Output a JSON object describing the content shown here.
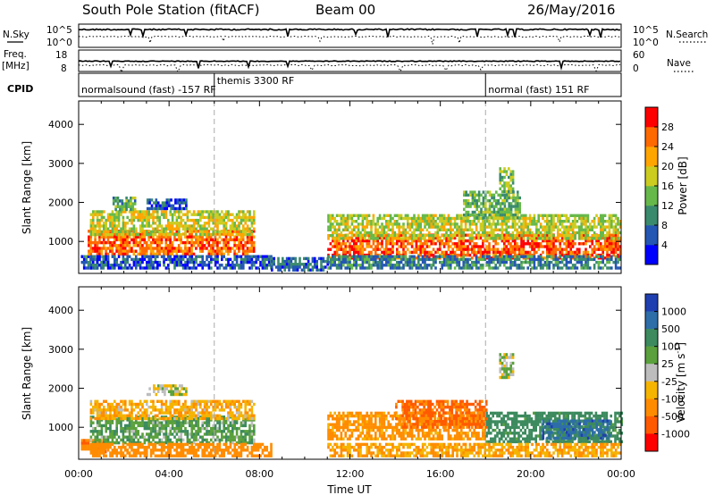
{
  "header": {
    "station": "South Pole Station (fitACF)",
    "beam": "Beam 00",
    "date": "26/May/2016"
  },
  "strip_panels": {
    "nsky": {
      "left_label": "N.Sky",
      "right_label": "N.Search",
      "left_ticks": [
        "10^5",
        "10^0"
      ],
      "right_ticks": [
        "10^5",
        "10^0"
      ]
    },
    "freq": {
      "left_label_1": "Freq.",
      "left_label_2": "[MHz]",
      "right_label": "Nave",
      "left_ticks": [
        "18",
        "8"
      ],
      "right_ticks": [
        "60",
        "0"
      ]
    },
    "cpid": {
      "label": "CPID",
      "segments": [
        {
          "label": "normalsound (fast) -157 RF",
          "start_hour": 0,
          "end_hour": 6
        },
        {
          "label": "themis 3300 RF",
          "start_hour": 6,
          "end_hour": 18
        },
        {
          "label": "normal (fast) 151 RF",
          "start_hour": 18,
          "end_hour": 24
        }
      ]
    }
  },
  "colorbars": {
    "power": {
      "label": "Power [dB]",
      "ticks": [
        "28",
        "24",
        "20",
        "16",
        "12",
        "8",
        "4"
      ],
      "colors": [
        "#0000ff",
        "#2456b4",
        "#3a8a6e",
        "#66b84a",
        "#cccc20",
        "#ffa500",
        "#ff6a00",
        "#ff0000"
      ]
    },
    "velocity": {
      "label_main": "Velocity [m s",
      "label_exp": "-1",
      "label_close": "]",
      "ticks": [
        "1000",
        "500",
        "100",
        "25",
        "-25",
        "-100",
        "-500",
        "-1000"
      ],
      "colors": [
        "#1f3fb0",
        "#2d6ea8",
        "#3c8a5e",
        "#5aa03c",
        "#bdbdbd",
        "#f5b400",
        "#ff8c00",
        "#ff5a00",
        "#ff0000"
      ]
    }
  },
  "chart_data": [
    {
      "type": "heatmap",
      "name": "power",
      "xlabel": "Time UT",
      "ylabel": "Slant Range [km]",
      "x_ticks": [
        "00:00",
        "04:00",
        "08:00",
        "12:00",
        "16:00",
        "20:00",
        "00:00"
      ],
      "xlim_hours": [
        0,
        24
      ],
      "ylim": [
        180,
        4600
      ],
      "y_ticks": [
        1000,
        2000,
        3000,
        4000
      ],
      "cpid_change_hours": [
        6,
        18
      ],
      "regions": [
        {
          "start_hour": 0.1,
          "end_hour": 1.2,
          "range_min": 350,
          "range_max": 650,
          "level": 8
        },
        {
          "start_hour": 0.4,
          "end_hour": 7.8,
          "range_min": 700,
          "range_max": 1300,
          "level": 26
        },
        {
          "start_hour": 0.5,
          "end_hour": 7.8,
          "range_min": 1200,
          "range_max": 1800,
          "level": 18
        },
        {
          "start_hour": 1.5,
          "end_hour": 2.5,
          "range_min": 1850,
          "range_max": 2150,
          "level": 12
        },
        {
          "start_hour": 3.0,
          "end_hour": 4.8,
          "range_min": 1850,
          "range_max": 2100,
          "level": 6
        },
        {
          "start_hour": 0.5,
          "end_hour": 8.5,
          "range_min": 300,
          "range_max": 650,
          "level": 6
        },
        {
          "start_hour": 8.5,
          "end_hour": 11.0,
          "range_min": 300,
          "range_max": 600,
          "level": 7
        },
        {
          "start_hour": 11.0,
          "end_hour": 24.0,
          "range_min": 600,
          "range_max": 1200,
          "level": 27
        },
        {
          "start_hour": 11.0,
          "end_hour": 24.0,
          "range_min": 1100,
          "range_max": 1700,
          "level": 17
        },
        {
          "start_hour": 11.0,
          "end_hour": 24.0,
          "range_min": 300,
          "range_max": 650,
          "level": 9
        },
        {
          "start_hour": 17.0,
          "end_hour": 19.5,
          "range_min": 1600,
          "range_max": 2300,
          "level": 13
        },
        {
          "start_hour": 18.6,
          "end_hour": 19.2,
          "range_min": 2300,
          "range_max": 2900,
          "level": 15
        }
      ]
    },
    {
      "type": "heatmap",
      "name": "velocity",
      "xlabel": "Time UT",
      "ylabel": "Slant Range [km]",
      "x_ticks": [
        "00:00",
        "04:00",
        "08:00",
        "12:00",
        "16:00",
        "20:00",
        "00:00"
      ],
      "xlim_hours": [
        0,
        24
      ],
      "ylim": [
        180,
        4600
      ],
      "y_ticks": [
        1000,
        2000,
        3000,
        4000
      ],
      "cpid_change_hours": [
        6,
        18
      ],
      "regions": [
        {
          "start_hour": 0.1,
          "end_hour": 1.2,
          "range_min": 350,
          "range_max": 700,
          "level": -400
        },
        {
          "start_hour": 0.5,
          "end_hour": 7.8,
          "range_min": 600,
          "range_max": 1300,
          "level": 80
        },
        {
          "start_hour": 0.5,
          "end_hour": 7.8,
          "range_min": 1200,
          "range_max": 1700,
          "level": -80
        },
        {
          "start_hour": 3.0,
          "end_hour": 4.8,
          "range_min": 1850,
          "range_max": 2100,
          "level": 0
        },
        {
          "start_hour": 0.5,
          "end_hour": 8.5,
          "range_min": 300,
          "range_max": 600,
          "level": -300
        },
        {
          "start_hour": 11.0,
          "end_hour": 18.0,
          "range_min": 700,
          "range_max": 1400,
          "level": -150
        },
        {
          "start_hour": 14.0,
          "end_hour": 18.0,
          "range_min": 1000,
          "range_max": 1700,
          "level": -600
        },
        {
          "start_hour": 18.0,
          "end_hour": 24.0,
          "range_min": 600,
          "range_max": 1400,
          "level": 200
        },
        {
          "start_hour": 20.5,
          "end_hour": 23.5,
          "range_min": 700,
          "range_max": 1200,
          "level": 700
        },
        {
          "start_hour": 11.0,
          "end_hour": 24.0,
          "range_min": 300,
          "range_max": 600,
          "level": -100
        },
        {
          "start_hour": 18.6,
          "end_hour": 19.2,
          "range_min": 2300,
          "range_max": 2900,
          "level": 0
        }
      ]
    }
  ]
}
